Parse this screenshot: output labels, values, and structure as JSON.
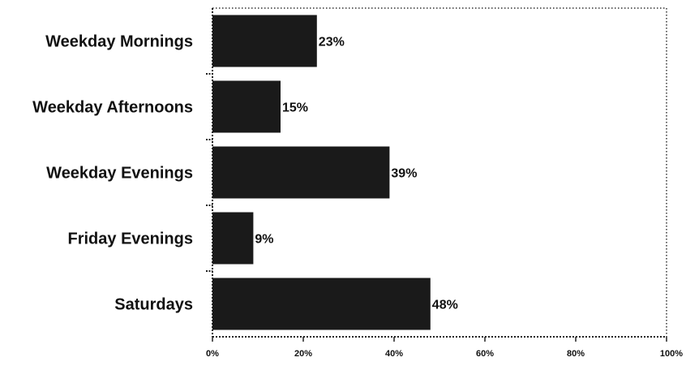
{
  "chart_data": {
    "type": "bar",
    "orientation": "horizontal",
    "categories": [
      "Weekday Mornings",
      "Weekday Afternoons",
      "Weekday Evenings",
      "Friday Evenings",
      "Saturdays"
    ],
    "values": [
      23,
      15,
      39,
      9,
      48
    ],
    "value_labels": [
      "23%",
      "15%",
      "39%",
      "9%",
      "48%"
    ],
    "xlim": [
      0,
      100
    ],
    "xticks": [
      0,
      20,
      40,
      60,
      80,
      100
    ],
    "xtick_labels": [
      "0%",
      "20%",
      "40%",
      "60%",
      "80%",
      "100%"
    ],
    "title": "",
    "xlabel": "",
    "ylabel": "",
    "grid": false,
    "legend": "none",
    "bar_color": "#1a1a1a",
    "frame_style": "dotted"
  }
}
